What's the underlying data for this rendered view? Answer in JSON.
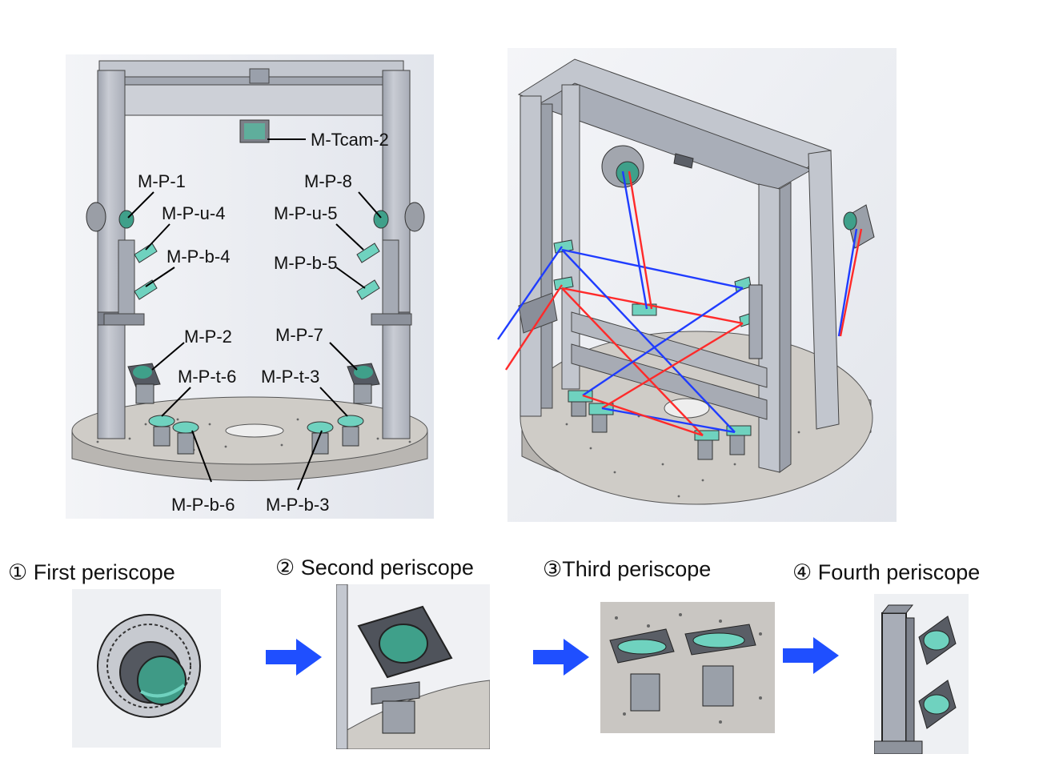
{
  "left_view": {
    "labels": {
      "tcam": "M-Tcam-2",
      "p1": "M-P-1",
      "p8": "M-P-8",
      "pu4": "M-P-u-4",
      "pu5": "M-P-u-5",
      "pb4": "M-P-b-4",
      "pb5": "M-P-b-5",
      "p2": "M-P-2",
      "p7": "M-P-7",
      "pt6": "M-P-t-6",
      "pt3": "M-P-t-3",
      "pb6": "M-P-b-6",
      "pb3": "M-P-b-3"
    }
  },
  "steps": [
    {
      "label": "① First periscope"
    },
    {
      "label": "② Second periscope"
    },
    {
      "label": "③Third periscope"
    },
    {
      "label": "④ Fourth periscope"
    }
  ],
  "colors": {
    "frame": "#bfc3cc",
    "frame_dark": "#8e939e",
    "mirror": "#3fa08a",
    "mirror_light": "#6fd2bf",
    "beam_blue": "#1f3cff",
    "beam_red": "#ff2a2a",
    "arrow": "#1f4fff",
    "table": "#c9c6c2"
  }
}
